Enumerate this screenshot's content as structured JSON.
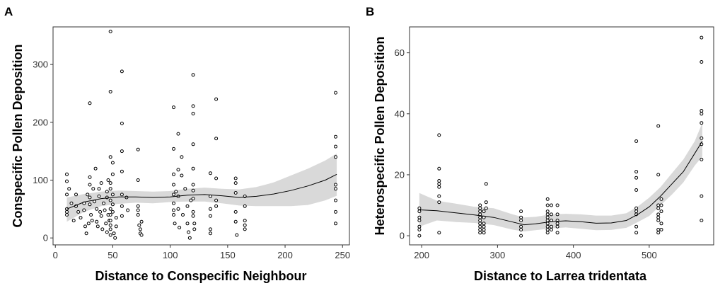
{
  "chart_data": [
    {
      "panel": "A",
      "type": "scatter",
      "xlabel": "Distance to Conspecific Neighbour",
      "ylabel": "Conspecific Pollen Deposition",
      "xlim": [
        -2,
        256
      ],
      "ylim": [
        -12,
        365
      ],
      "xticks": [
        0,
        50,
        100,
        150,
        200,
        250
      ],
      "yticks": [
        0,
        100,
        200,
        300
      ],
      "grid": false,
      "points": [
        [
          10,
          110
        ],
        [
          10,
          98
        ],
        [
          10,
          75
        ],
        [
          10,
          50
        ],
        [
          10,
          45
        ],
        [
          10,
          40
        ],
        [
          12,
          85
        ],
        [
          14,
          60
        ],
        [
          16,
          30
        ],
        [
          18,
          75
        ],
        [
          18,
          55
        ],
        [
          20,
          45
        ],
        [
          22,
          35
        ],
        [
          25,
          60
        ],
        [
          25,
          48
        ],
        [
          26,
          20
        ],
        [
          27,
          8
        ],
        [
          28,
          75
        ],
        [
          29,
          25
        ],
        [
          30,
          233
        ],
        [
          30,
          105
        ],
        [
          30,
          92
        ],
        [
          30,
          70
        ],
        [
          30,
          58
        ],
        [
          31,
          40
        ],
        [
          32,
          30
        ],
        [
          33,
          85
        ],
        [
          34,
          63
        ],
        [
          35,
          120
        ],
        [
          36,
          50
        ],
        [
          36,
          28
        ],
        [
          37,
          20
        ],
        [
          38,
          85
        ],
        [
          38,
          72
        ],
        [
          39,
          45
        ],
        [
          40,
          95
        ],
        [
          40,
          38
        ],
        [
          41,
          15
        ],
        [
          42,
          60
        ],
        [
          43,
          48
        ],
        [
          44,
          25
        ],
        [
          45,
          80
        ],
        [
          45,
          70
        ],
        [
          45,
          10
        ],
        [
          46,
          100
        ],
        [
          46,
          40
        ],
        [
          47,
          30
        ],
        [
          48,
          357
        ],
        [
          48,
          253
        ],
        [
          48,
          140
        ],
        [
          48,
          95
        ],
        [
          48,
          85
        ],
        [
          48,
          65
        ],
        [
          48,
          50
        ],
        [
          48,
          40
        ],
        [
          48,
          30
        ],
        [
          48,
          22
        ],
        [
          48,
          15
        ],
        [
          48,
          5
        ],
        [
          50,
          130
        ],
        [
          50,
          110
        ],
        [
          50,
          75
        ],
        [
          50,
          58
        ],
        [
          50,
          45
        ],
        [
          51,
          8
        ],
        [
          52,
          0
        ],
        [
          53,
          35
        ],
        [
          53,
          20
        ],
        [
          58,
          288
        ],
        [
          58,
          198
        ],
        [
          58,
          150
        ],
        [
          58,
          115
        ],
        [
          58,
          75
        ],
        [
          58,
          55
        ],
        [
          58,
          38
        ],
        [
          62,
          70
        ],
        [
          63,
          48
        ],
        [
          72,
          153
        ],
        [
          72,
          100
        ],
        [
          72,
          55
        ],
        [
          72,
          48
        ],
        [
          72,
          40
        ],
        [
          73,
          22
        ],
        [
          74,
          15
        ],
        [
          74,
          8
        ],
        [
          75,
          5
        ],
        [
          75,
          28
        ],
        [
          103,
          226
        ],
        [
          103,
          154
        ],
        [
          103,
          110
        ],
        [
          103,
          92
        ],
        [
          103,
          75
        ],
        [
          103,
          60
        ],
        [
          103,
          48
        ],
        [
          103,
          40
        ],
        [
          104,
          25
        ],
        [
          105,
          80
        ],
        [
          107,
          180
        ],
        [
          107,
          118
        ],
        [
          107,
          72
        ],
        [
          107,
          50
        ],
        [
          108,
          18
        ],
        [
          110,
          140
        ],
        [
          110,
          108
        ],
        [
          111,
          40
        ],
        [
          113,
          85
        ],
        [
          115,
          55
        ],
        [
          115,
          25
        ],
        [
          116,
          10
        ],
        [
          117,
          0
        ],
        [
          118,
          65
        ],
        [
          120,
          282
        ],
        [
          120,
          228
        ],
        [
          120,
          215
        ],
        [
          120,
          162
        ],
        [
          120,
          120
        ],
        [
          120,
          92
        ],
        [
          120,
          82
        ],
        [
          120,
          68
        ],
        [
          120,
          45
        ],
        [
          120,
          38
        ],
        [
          121,
          25
        ],
        [
          121,
          15
        ],
        [
          135,
          112
        ],
        [
          135,
          72
        ],
        [
          135,
          50
        ],
        [
          135,
          38
        ],
        [
          135,
          15
        ],
        [
          135,
          8
        ],
        [
          140,
          240
        ],
        [
          140,
          172
        ],
        [
          140,
          103
        ],
        [
          140,
          65
        ],
        [
          140,
          55
        ],
        [
          157,
          103
        ],
        [
          157,
          95
        ],
        [
          157,
          78
        ],
        [
          157,
          45
        ],
        [
          157,
          28
        ],
        [
          158,
          5
        ],
        [
          165,
          72
        ],
        [
          165,
          55
        ],
        [
          165,
          30
        ],
        [
          165,
          22
        ],
        [
          165,
          15
        ],
        [
          244,
          251
        ],
        [
          244,
          175
        ],
        [
          244,
          158
        ],
        [
          244,
          140
        ],
        [
          244,
          92
        ],
        [
          244,
          85
        ],
        [
          244,
          65
        ],
        [
          244,
          45
        ],
        [
          244,
          25
        ]
      ],
      "fit_line": {
        "x": [
          10,
          25,
          40,
          55,
          70,
          85,
          100,
          115,
          130,
          145,
          160,
          175,
          190,
          205,
          220,
          235,
          245
        ],
        "y": [
          50,
          62,
          68,
          71,
          71,
          70,
          71,
          74,
          75,
          73,
          70,
          72,
          76,
          82,
          90,
          100,
          110
        ]
      },
      "ci_band": {
        "x": [
          10,
          25,
          40,
          55,
          70,
          85,
          100,
          115,
          130,
          145,
          160,
          175,
          190,
          205,
          220,
          235,
          245
        ],
        "upper": [
          70,
          76,
          80,
          82,
          81,
          80,
          81,
          85,
          87,
          85,
          84,
          88,
          96,
          108,
          120,
          134,
          146
        ],
        "lower": [
          28,
          45,
          55,
          59,
          61,
          60,
          62,
          63,
          63,
          60,
          56,
          55,
          55,
          55,
          57,
          65,
          73
        ]
      }
    },
    {
      "panel": "B",
      "type": "scatter",
      "xlabel": "Distance to Larrea tridentata",
      "ylabel": "Heterospecific Pollen Deposition",
      "xlim": [
        184,
        585
      ],
      "ylim": [
        -3,
        68.5
      ],
      "xticks": [
        200,
        300,
        400,
        500
      ],
      "yticks": [
        0,
        20,
        40,
        60
      ],
      "grid": false,
      "points": [
        [
          197,
          9
        ],
        [
          197,
          8
        ],
        [
          197,
          6
        ],
        [
          197,
          5
        ],
        [
          197,
          3
        ],
        [
          197,
          2
        ],
        [
          197,
          0
        ],
        [
          223,
          33
        ],
        [
          223,
          22
        ],
        [
          223,
          18
        ],
        [
          223,
          17
        ],
        [
          223,
          16
        ],
        [
          223,
          13
        ],
        [
          223,
          11
        ],
        [
          223,
          1
        ],
        [
          277,
          10
        ],
        [
          277,
          9
        ],
        [
          277,
          8
        ],
        [
          277,
          7
        ],
        [
          277,
          6
        ],
        [
          277,
          5
        ],
        [
          277,
          4
        ],
        [
          277,
          3
        ],
        [
          277,
          2
        ],
        [
          277,
          1
        ],
        [
          282,
          8
        ],
        [
          282,
          6
        ],
        [
          282,
          4
        ],
        [
          282,
          3
        ],
        [
          282,
          2
        ],
        [
          282,
          1
        ],
        [
          285,
          17
        ],
        [
          285,
          11
        ],
        [
          285,
          9
        ],
        [
          331,
          8
        ],
        [
          331,
          6
        ],
        [
          331,
          5
        ],
        [
          331,
          3
        ],
        [
          331,
          2
        ],
        [
          331,
          0
        ],
        [
          366,
          12
        ],
        [
          366,
          10
        ],
        [
          366,
          8
        ],
        [
          366,
          7
        ],
        [
          366,
          6
        ],
        [
          366,
          5
        ],
        [
          366,
          4
        ],
        [
          366,
          3
        ],
        [
          366,
          2
        ],
        [
          366,
          1
        ],
        [
          371,
          10
        ],
        [
          371,
          7
        ],
        [
          371,
          5
        ],
        [
          371,
          3
        ],
        [
          371,
          2
        ],
        [
          379,
          10
        ],
        [
          379,
          7
        ],
        [
          379,
          5
        ],
        [
          379,
          4
        ],
        [
          379,
          3
        ],
        [
          379,
          1
        ],
        [
          483,
          31
        ],
        [
          483,
          21
        ],
        [
          483,
          19
        ],
        [
          483,
          15
        ],
        [
          483,
          9
        ],
        [
          483,
          8
        ],
        [
          483,
          7
        ],
        [
          483,
          3
        ],
        [
          483,
          1
        ],
        [
          512,
          36
        ],
        [
          512,
          20
        ],
        [
          512,
          10
        ],
        [
          512,
          9
        ],
        [
          512,
          7
        ],
        [
          512,
          6
        ],
        [
          512,
          5
        ],
        [
          512,
          2
        ],
        [
          512,
          1
        ],
        [
          516,
          12
        ],
        [
          516,
          10
        ],
        [
          516,
          8
        ],
        [
          516,
          4
        ],
        [
          516,
          2
        ],
        [
          569,
          65
        ],
        [
          569,
          57
        ],
        [
          569,
          41
        ],
        [
          569,
          40
        ],
        [
          569,
          37
        ],
        [
          569,
          32
        ],
        [
          569,
          30
        ],
        [
          569,
          25
        ],
        [
          569,
          13
        ],
        [
          569,
          5
        ]
      ],
      "fit_line": {
        "x": [
          197,
          220,
          245,
          270,
          295,
          320,
          335,
          350,
          370,
          390,
          410,
          430,
          450,
          470,
          485,
          500,
          515,
          530,
          545,
          560,
          570
        ],
        "y": [
          8.5,
          8.2,
          7.5,
          6.8,
          6,
          4.5,
          3.6,
          3.9,
          4.6,
          4.9,
          4.6,
          4.1,
          4.2,
          5,
          7,
          9.5,
          13,
          17,
          21,
          27,
          31
        ]
      },
      "ci_band": {
        "x": [
          197,
          220,
          245,
          270,
          295,
          320,
          335,
          350,
          370,
          390,
          410,
          430,
          450,
          470,
          485,
          500,
          515,
          530,
          545,
          560,
          570
        ],
        "upper": [
          14,
          11.5,
          10.5,
          9.5,
          9,
          7,
          6,
          6.2,
          7,
          7.2,
          7,
          6.6,
          6.6,
          7.4,
          9.6,
          12.5,
          16,
          20.5,
          25,
          31,
          37
        ],
        "lower": [
          3,
          5,
          4.5,
          4.2,
          3.5,
          2,
          1.4,
          1.8,
          2.4,
          2.7,
          2.3,
          1.8,
          1.9,
          2.6,
          4.5,
          6.5,
          10,
          13.5,
          17.5,
          23,
          26
        ]
      }
    }
  ]
}
